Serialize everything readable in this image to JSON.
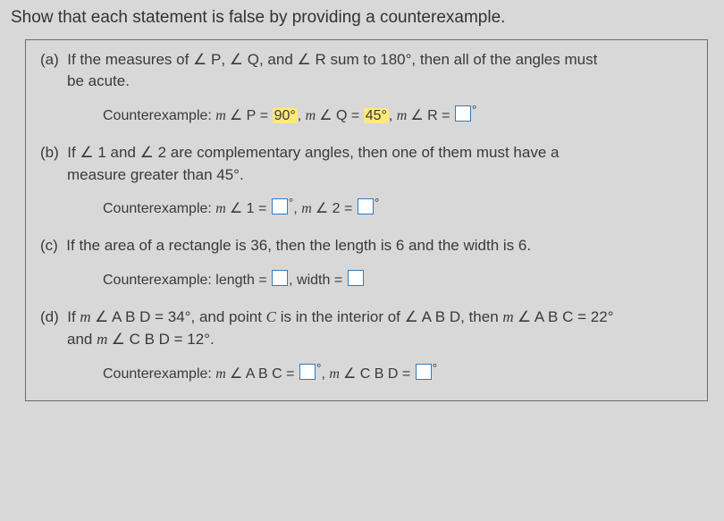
{
  "title": "Show that each statement is false by providing a counterexample.",
  "parts": {
    "a": {
      "label": "(a)",
      "text_before_sym1": "If the measures of ",
      "sym1": "∠ P",
      "text_mid1": ", ",
      "sym2": "∠ Q",
      "text_mid2": ", and ",
      "sym3": "∠ R",
      "text_after": " sum to 180°, then all of the angles must",
      "line2": "be acute.",
      "counter_label": "Counterexample: ",
      "c1_pre": "m ",
      "c1_sym": "∠ P",
      "c1_eq": " = ",
      "c1_val": "90°",
      "c1_sep": ", ",
      "c2_pre": "m ",
      "c2_sym": "∠ Q",
      "c2_eq": " = ",
      "c2_val": "45°",
      "c2_sep": ", ",
      "c3_pre": "m ",
      "c3_sym": "∠ R",
      "c3_eq": " = ",
      "c3_deg": "°"
    },
    "b": {
      "label": "(b)",
      "text_before_sym1": "If ",
      "sym1": "∠ 1",
      "text_mid1": " and ",
      "sym2": "∠ 2",
      "text_after": " are complementary angles, then one of them must have a",
      "line2": "measure greater than 45°.",
      "counter_label": "Counterexample: ",
      "c1_pre": "m ",
      "c1_sym": "∠ 1",
      "c1_eq": " = ",
      "c1_deg": "°",
      "c1_sep": ", ",
      "c2_pre": "m ",
      "c2_sym": "∠ 2",
      "c2_eq": " = ",
      "c2_deg": "°"
    },
    "c": {
      "label": "(c)",
      "text": "If the area of a rectangle is 36, then the length is 6 and the width is 6.",
      "counter_label": "Counterexample:  ",
      "c1_label": "length  = ",
      "c1_sep": ",  ",
      "c2_label": "width  = "
    },
    "d": {
      "label": "(d)",
      "l1_p1": "If ",
      "l1_m1": "m ",
      "l1_sym1": "∠ A B D",
      "l1_p2": " = 34°, and point ",
      "l1_C": "C",
      "l1_p3": " is in the interior of ",
      "l1_sym2": "∠ A B D",
      "l1_p4": ", then ",
      "l1_m2": "m ",
      "l1_sym3": "∠ A B C",
      "l1_p5": " = 22°",
      "l2_p1": "and ",
      "l2_m": "m ",
      "l2_sym": "∠ C B D",
      "l2_p2": " = 12°.",
      "counter_label": "Counterexample: ",
      "c1_pre": "m ",
      "c1_sym": "∠ A B C",
      "c1_eq": " = ",
      "c1_deg": "°",
      "c1_sep": ", ",
      "c2_pre": "m ",
      "c2_sym": "∠ C B D",
      "c2_eq": " = ",
      "c2_deg": "°"
    }
  }
}
